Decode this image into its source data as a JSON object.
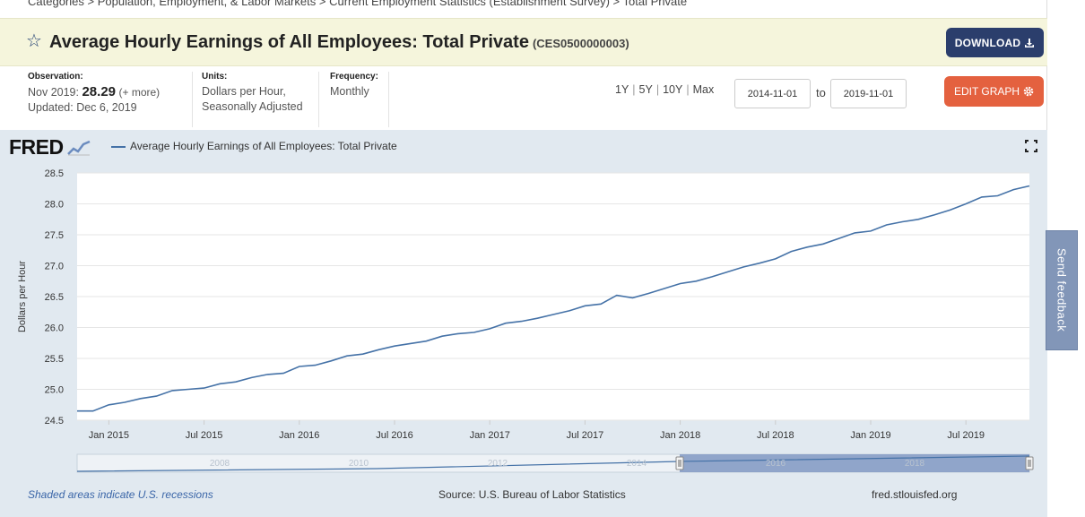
{
  "breadcrumb": [
    "Categories",
    "Population, Employment, & Labor Markets",
    "Current Employment Statistics (Establishment Survey)",
    "Total Private"
  ],
  "breadcrumb_sep": ">",
  "title": {
    "text": "Average Hourly Earnings of All Employees: Total Private",
    "series_id": "(CES0500000003)"
  },
  "download_label": "DOWNLOAD",
  "observation": {
    "label": "Observation:",
    "period": "Nov 2019:",
    "value": "28.29",
    "more": "(+ more)",
    "updated": "Updated: Dec 6, 2019"
  },
  "units": {
    "label": "Units:",
    "line1": "Dollars per Hour,",
    "line2": "Seasonally Adjusted"
  },
  "frequency": {
    "label": "Frequency:",
    "value": "Monthly"
  },
  "ranges": [
    "1Y",
    "5Y",
    "10Y",
    "Max"
  ],
  "date_from": "2014-11-01",
  "date_to": "2019-11-01",
  "to_label": "to",
  "edit_graph_label": "EDIT GRAPH",
  "logo": "FRED",
  "legend_label": "Average Hourly Earnings of All Employees: Total Private",
  "footer": {
    "recession_note": "Shaded areas indicate U.S. recessions",
    "source": "Source: U.S. Bureau of Labor Statistics",
    "site": "fred.stlouisfed.org"
  },
  "feedback_label": "Send feedback",
  "colors": {
    "line": "#4572a7",
    "download_bg": "#2b3e6c",
    "edit_bg": "#e4613f",
    "title_bg": "#f5f5dc",
    "chart_bg": "#e1e9f0"
  },
  "chart_data": {
    "type": "line",
    "ylabel": "Dollars per Hour",
    "ylim": [
      24.5,
      28.5
    ],
    "yticks": [
      "24.5",
      "25.0",
      "25.5",
      "26.0",
      "26.5",
      "27.0",
      "27.5",
      "28.0",
      "28.5"
    ],
    "xticks": [
      "Jan 2015",
      "Jul 2015",
      "Jan 2016",
      "Jul 2016",
      "Jan 2017",
      "Jul 2017",
      "Jan 2018",
      "Jul 2018",
      "Jan 2019",
      "Jul 2019"
    ],
    "grid": true,
    "start": "2014-11",
    "series": [
      {
        "name": "Average Hourly Earnings of All Employees: Total Private",
        "values": [
          24.65,
          24.65,
          24.75,
          24.79,
          24.85,
          24.89,
          24.98,
          25.0,
          25.02,
          25.09,
          25.12,
          25.19,
          25.24,
          25.26,
          25.37,
          25.39,
          25.46,
          25.54,
          25.57,
          25.64,
          25.7,
          25.74,
          25.78,
          25.86,
          25.9,
          25.92,
          25.98,
          26.07,
          26.1,
          26.15,
          26.21,
          26.27,
          26.35,
          26.38,
          26.52,
          26.48,
          26.55,
          26.63,
          26.71,
          26.75,
          26.82,
          26.9,
          26.98,
          27.04,
          27.11,
          27.23,
          27.3,
          27.35,
          27.44,
          27.53,
          27.56,
          27.66,
          27.71,
          27.75,
          27.82,
          27.9,
          28.0,
          28.11,
          28.13,
          28.23,
          28.29
        ]
      }
    ],
    "navigator_ticks": [
      "2008",
      "2010",
      "2012",
      "2014",
      "2016",
      "2018"
    ]
  }
}
